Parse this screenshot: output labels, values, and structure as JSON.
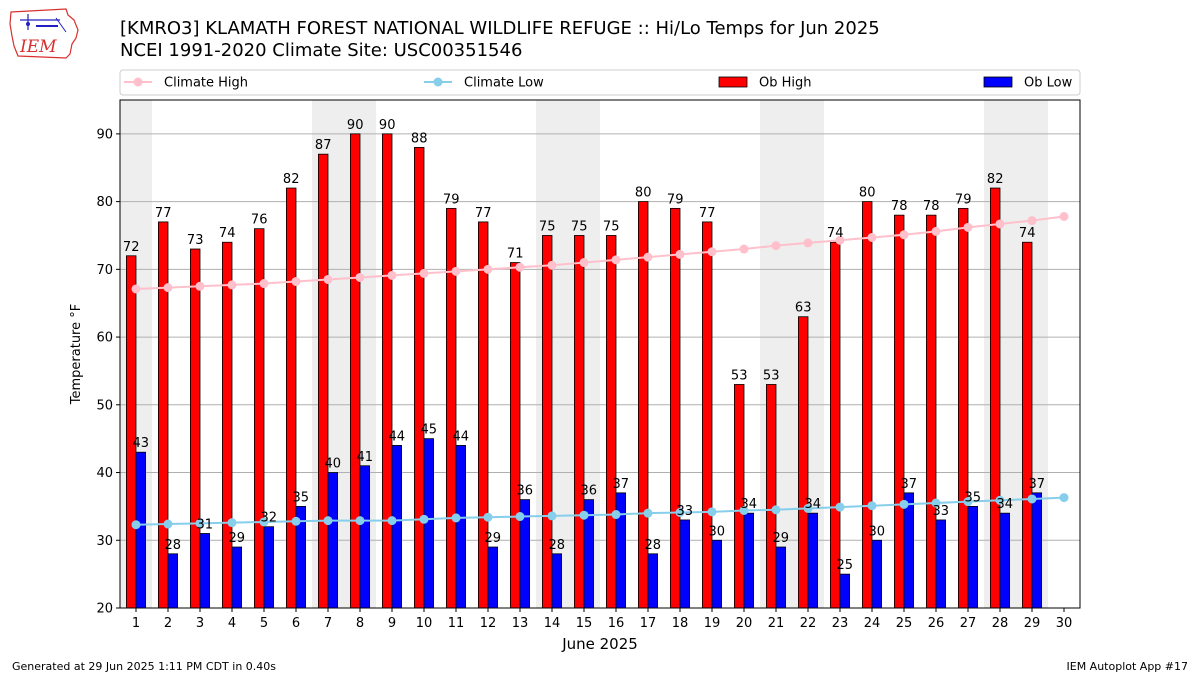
{
  "header": {
    "title": "[KMRO3] KLAMATH FOREST NATIONAL WILDLIFE REFUGE :: Hi/Lo Temps for Jun 2025",
    "subtitle": "NCEI 1991-2020 Climate Site: USC00351546",
    "logo_text": "IEM"
  },
  "footer": {
    "generated": "Generated at 29 Jun 2025 1:11 PM CDT in 0.40s",
    "app": "IEM Autoplot App #17"
  },
  "colors": {
    "ob_high": "#ff0000",
    "ob_low": "#0000ff",
    "climate_high": "#ffc0cb",
    "climate_low": "#87ceeb",
    "weekend_shade": "#eeeeee",
    "grid": "#b0b0b0"
  },
  "chart_data": {
    "type": "bar",
    "xlabel": "June 2025",
    "ylabel": "Temperature °F",
    "ylim": [
      20,
      95
    ],
    "yticks": [
      20,
      30,
      40,
      50,
      60,
      70,
      80,
      90
    ],
    "grid": "horizontal",
    "legend_placement": "top",
    "categories": [
      "1",
      "2",
      "3",
      "4",
      "5",
      "6",
      "7",
      "8",
      "9",
      "10",
      "11",
      "12",
      "13",
      "14",
      "15",
      "16",
      "17",
      "18",
      "19",
      "20",
      "21",
      "22",
      "23",
      "24",
      "25",
      "26",
      "27",
      "28",
      "29",
      "30"
    ],
    "shaded_days": [
      1,
      7,
      8,
      14,
      15,
      21,
      22,
      28,
      29
    ],
    "series": [
      {
        "name": "Ob High",
        "kind": "bar",
        "values": [
          72,
          77,
          73,
          74,
          76,
          82,
          87,
          90,
          90,
          88,
          79,
          77,
          71,
          75,
          75,
          75,
          80,
          79,
          77,
          53,
          53,
          63,
          74,
          80,
          78,
          78,
          79,
          82,
          74,
          null
        ]
      },
      {
        "name": "Ob Low",
        "kind": "bar",
        "values": [
          43,
          28,
          31,
          29,
          32,
          35,
          40,
          41,
          44,
          45,
          44,
          29,
          36,
          28,
          36,
          37,
          28,
          33,
          30,
          34,
          29,
          34,
          25,
          30,
          37,
          33,
          35,
          34,
          37,
          null
        ]
      },
      {
        "name": "Climate High",
        "kind": "line",
        "values": [
          67.1,
          67.3,
          67.5,
          67.7,
          67.9,
          68.2,
          68.5,
          68.8,
          69.1,
          69.4,
          69.7,
          70.0,
          70.3,
          70.6,
          71.0,
          71.4,
          71.8,
          72.2,
          72.6,
          73.0,
          73.5,
          73.9,
          74.3,
          74.7,
          75.1,
          75.6,
          76.2,
          76.7,
          77.2,
          77.8
        ]
      },
      {
        "name": "Climate Low",
        "kind": "line",
        "values": [
          32.3,
          32.4,
          32.5,
          32.6,
          32.7,
          32.8,
          32.9,
          32.9,
          32.9,
          33.1,
          33.3,
          33.4,
          33.5,
          33.6,
          33.7,
          33.8,
          34.0,
          34.1,
          34.2,
          34.4,
          34.5,
          34.7,
          34.9,
          35.1,
          35.3,
          35.5,
          35.7,
          35.9,
          36.1,
          36.3
        ]
      }
    ]
  }
}
